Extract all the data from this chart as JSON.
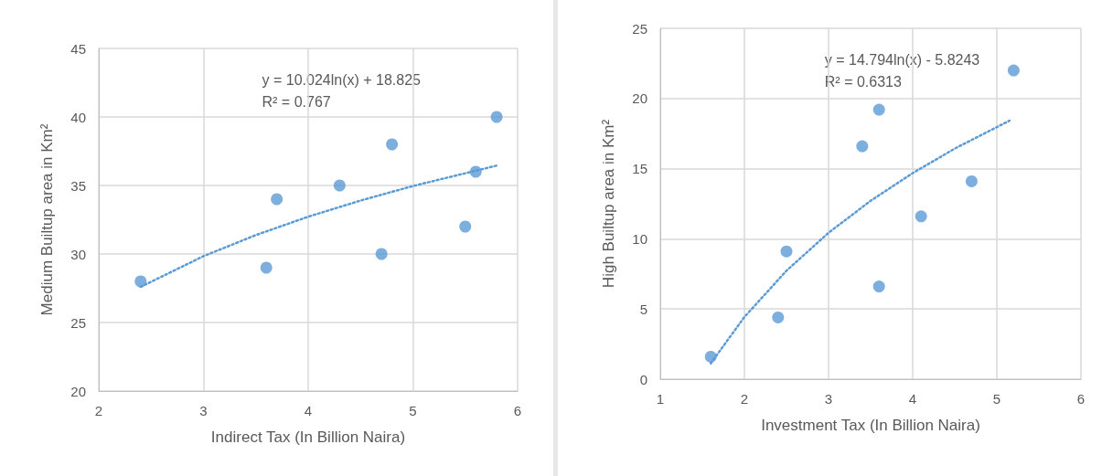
{
  "chart_data": [
    {
      "type": "scatter",
      "xlabel": "Indirect Tax (In Billion Naira)",
      "ylabel": "Medium Builtup area in Km²",
      "xlim": [
        2,
        6
      ],
      "xticks": [
        2,
        3,
        4,
        5,
        6
      ],
      "ylim": [
        20,
        45
      ],
      "yticks": [
        20,
        25,
        30,
        35,
        40,
        45
      ],
      "grid": true,
      "marker": "circle",
      "annotations": [
        "y = 10.024ln(x) + 18.825",
        "R² = 0.767"
      ],
      "series": [
        {
          "type": "scatter",
          "color": "#5b9bd5",
          "x": [
            2.4,
            3.6,
            3.7,
            4.3,
            4.7,
            4.8,
            5.5,
            5.6,
            5.8
          ],
          "values": [
            28,
            29,
            34,
            35,
            30,
            38,
            32,
            36,
            40
          ]
        },
        {
          "type": "line",
          "color": "#5b9bd5",
          "line_style": "dotted",
          "marker": "none",
          "x": [
            2.4,
            3,
            3.5,
            4,
            4.5,
            5,
            5.8
          ],
          "values": [
            27.6,
            29.84,
            31.38,
            32.72,
            33.9,
            34.96,
            36.45
          ]
        }
      ]
    },
    {
      "type": "scatter",
      "xlabel": "Investment Tax (In Billion Naira)",
      "ylabel": "High Builtup area in Km²",
      "xlim": [
        1,
        6
      ],
      "xticks": [
        1,
        2,
        3,
        4,
        5,
        6
      ],
      "ylim": [
        0,
        25
      ],
      "yticks": [
        0,
        5,
        10,
        15,
        20,
        25
      ],
      "grid": true,
      "marker": "circle",
      "annotations": [
        "y = 14.794ln(x) - 5.8243",
        "R² = 0.6313"
      ],
      "series": [
        {
          "type": "scatter",
          "color": "#5b9bd5",
          "x": [
            1.6,
            2.4,
            2.5,
            3.4,
            3.6,
            3.6,
            4.1,
            4.7,
            5.2
          ],
          "values": [
            1.6,
            4.4,
            9.1,
            16.6,
            19.2,
            6.6,
            11.6,
            14.1,
            22
          ]
        },
        {
          "type": "line",
          "color": "#5b9bd5",
          "line_style": "dotted",
          "marker": "none",
          "x": [
            1.6,
            2,
            2.5,
            3,
            3.5,
            4,
            4.5,
            5.15
          ],
          "values": [
            1.13,
            4.43,
            7.73,
            10.43,
            12.71,
            14.68,
            16.43,
            18.42
          ]
        }
      ]
    }
  ]
}
